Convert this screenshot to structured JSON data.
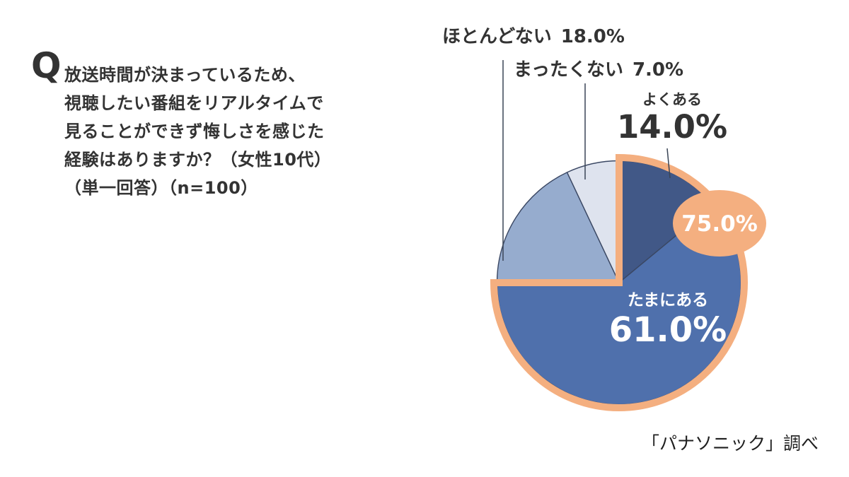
{
  "question": {
    "q": "Q",
    "lines": [
      "放送時間が決まっているため、",
      "視聴したい番組をリアルタイムで",
      "見ることができず悔しさを感じた",
      "経験はありますか？（女性10代）",
      "（単一回答）（n=100）"
    ]
  },
  "chart_data": {
    "type": "pie",
    "unit": "percent",
    "start_angle_deg": 0,
    "direction": "clockwise",
    "slices": [
      {
        "label": "よくある",
        "value": 14.0,
        "display": "14.0%",
        "color": "#415887"
      },
      {
        "label": "たまにある",
        "value": 61.0,
        "display": "61.0%",
        "color": "#4F70AC"
      },
      {
        "label": "ほとんどない",
        "value": 18.0,
        "display": "18.0%",
        "color": "#96ACCE"
      },
      {
        "label": "まったくない",
        "value": 7.0,
        "display": "7.0%",
        "color": "#DEE3EE"
      }
    ],
    "slice_border_color": "#3A4763",
    "callout": {
      "value": 75.0,
      "display": "75.0%",
      "color": "#F4AF80",
      "text_color": "#FFFFFF"
    }
  },
  "source": {
    "text": "「パナソニック」調べ"
  },
  "colors": {
    "text": "#333333",
    "background": "#FFFFFF",
    "leader_line": "#3A4556"
  }
}
